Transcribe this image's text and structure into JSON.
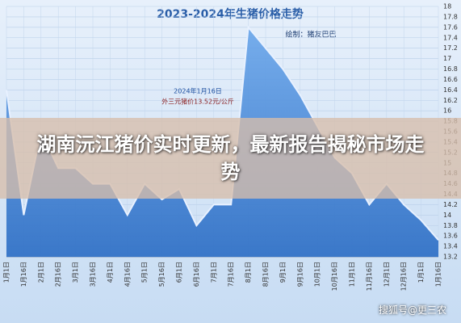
{
  "chart_data": {
    "type": "line",
    "title": "2023-2024年生猪价格走势",
    "subtitle": "绘制：猪友巴巴",
    "annotations": [
      "2024年1月16日",
      "外三元猪价13.52元/公斤"
    ],
    "categories": [
      "1月1日",
      "1月16日",
      "2月1日",
      "2月16日",
      "3月1日",
      "3月16日",
      "4月1日",
      "4月16日",
      "5月1日",
      "5月16日",
      "6月1日",
      "6月16日",
      "7月1日",
      "7月16日",
      "8月1日",
      "8月16日",
      "9月1日",
      "9月16日",
      "10月1日",
      "10月16日",
      "11月1日",
      "11月16日",
      "12月1日",
      "12月16日",
      "1月1日",
      "1月16日"
    ],
    "series": [
      {
        "color": "#e8f1ff",
        "values": [
          16.4,
          14.0,
          15.6,
          14.9,
          14.9,
          14.6,
          14.6,
          14.0,
          14.6,
          14.3,
          14.5,
          13.8,
          14.2,
          14.2,
          17.6,
          17.2,
          16.8,
          16.3,
          15.7,
          15.1,
          14.8,
          14.2,
          14.6,
          14.2,
          13.9,
          13.52
        ]
      }
    ],
    "ylim": [
      13.2,
      18
    ],
    "yticks": [
      13.2,
      13.4,
      13.6,
      13.8,
      14,
      14.2,
      14.4,
      14.6,
      14.8,
      15,
      15.2,
      15.4,
      15.6,
      15.8,
      16,
      16.2,
      16.4,
      16.6,
      16.8,
      17,
      17.2,
      17.4,
      17.6,
      17.8,
      18
    ],
    "grid": true,
    "fill_color": "#3d84d6"
  },
  "headline": "湖南沅江猪价实时更新，最新报告揭秘市场走势",
  "watermark": "搜狐号@更三农"
}
